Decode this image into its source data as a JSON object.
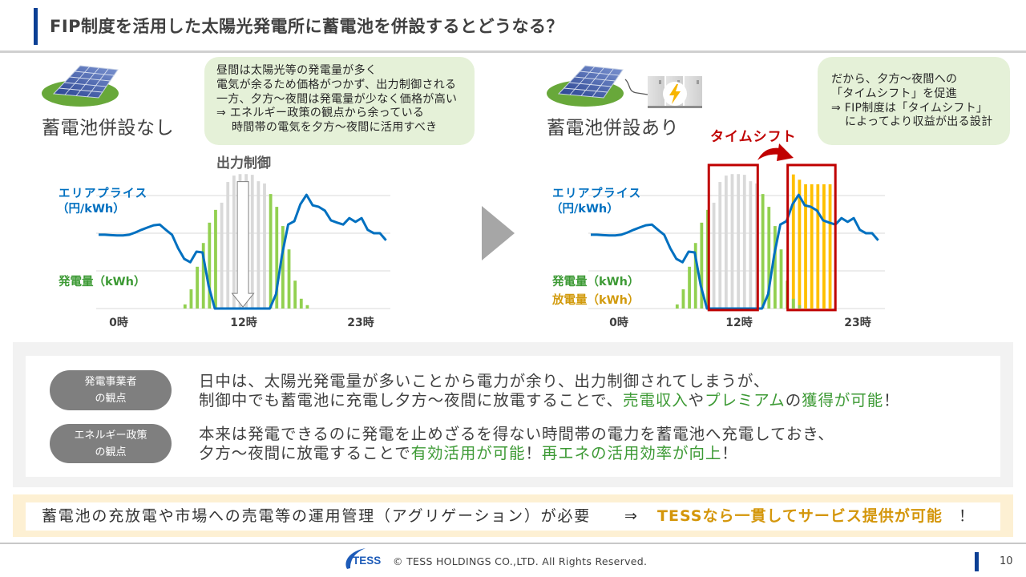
{
  "header": {
    "title": "FIP制度を活用した太陽光発電所に蓄電池を併設するとどうなる？"
  },
  "left_panel": {
    "heading": "蓄電池併設なし",
    "icon": "solar-panel-icon",
    "callout_lines": [
      "昼間は太陽光等の発電量が多く",
      "電気が余るため価格がつかず、出力制御される",
      "一方、夕方～夜間は発電量が少なく価格が高い",
      "⇒ エネルギー政策の観点から余っている",
      "時間帯の電気を夕方～夜間に活用すべき"
    ]
  },
  "right_panel": {
    "heading": "蓄電池併設あり",
    "icons": [
      "solar-panel-icon",
      "battery-storage-icon",
      "lightning-icon"
    ],
    "callout_lines": [
      "だから、夕方～夜間への",
      "「タイムシフト」を促進",
      "⇒ FIP制度は「タイムシフト」",
      "によってより収益が出る設計"
    ]
  },
  "transition_arrow": "arrow-right-icon",
  "perspectives": [
    {
      "badge_lines": [
        "発電事業者",
        "の観点"
      ],
      "line1": [
        "日中は、太陽光発電量が多いことから電力が余り、出力制御されてしまうが、"
      ],
      "line2": [
        "制御中でも蓄電池に充電し夕方～夜間に放電することで、",
        "売電収入",
        "や",
        "プレミアム",
        "の",
        "獲得が可能",
        "！"
      ]
    },
    {
      "badge_lines": [
        "エネルギー政策",
        "の観点"
      ],
      "line1": [
        "本来は発電できるのに発電を止めざるを得ない時間帯の電力を蓄電池へ充電しておき、"
      ],
      "line2": [
        "夕方～夜間に放電することで",
        "有効活用が可能",
        "！",
        "再エネの活用効率が向上",
        "！"
      ]
    }
  ],
  "banner": {
    "text": "蓄電池の充放電や市場への売電等の運用管理（アグリゲーション）が必要",
    "arrow": "⇒",
    "highlight": "TESSなら一貫してサービス提供が可能",
    "exclaim": "！"
  },
  "footer": {
    "logo_text": "TESS",
    "copyright": "© TESS HOLDINGS CO.,LTD. All Rights Reserved.",
    "page_number": "10"
  },
  "colors": {
    "accent_blue": "#0b3f94",
    "price_line": "#0070c0",
    "generation": "#92d050",
    "curtailed": "#d9d9d9",
    "discharge": "#ffc000",
    "highlight_red": "#c00000",
    "text_green": "#3d9a35",
    "text_orange": "#d4960a",
    "callout_bg": "#e5f1d8",
    "badge_gray": "#7f7f7f"
  },
  "chart_data": [
    {
      "title": "蓄電池併設なし",
      "type": "bar+line",
      "n_points": 48,
      "xlabel": "",
      "ylabel": "",
      "ylim": [
        0,
        3.6
      ],
      "grid": true,
      "gridlines": [
        0,
        1,
        2,
        3
      ],
      "x_ticks": [
        {
          "label": "0時",
          "pos": 3.2
        },
        {
          "label": "12時",
          "pos": 23.7
        },
        {
          "label": "23時",
          "pos": 42.9
        }
      ],
      "series": [
        {
          "name": "出力制御",
          "type": "bar",
          "color": "#d9d9d9",
          "start": 20,
          "values": [
            2.81,
            3.36,
            3.53,
            3.57,
            3.57,
            3.55,
            3.38,
            3.32
          ]
        },
        {
          "name": "発電量（kWh）",
          "type": "bar",
          "color": "#92d050",
          "start": 14,
          "values": [
            0.11,
            0.51,
            1.11,
            1.74,
            2.28,
            2.62,
            null,
            null,
            null,
            null,
            null,
            null,
            null,
            null,
            3.04,
            2.7,
            2.19,
            1.57,
            0.74,
            0.26,
            0.09
          ]
        },
        {
          "name": "エリアプライス（円/kWh）",
          "label_lines": [
            "エリアプライス",
            "（円/kWh）"
          ],
          "type": "line",
          "color": "#0070c0",
          "start": 0,
          "values": [
            1.96,
            1.96,
            1.95,
            1.94,
            1.94,
            1.96,
            2.02,
            2.09,
            2.15,
            2.21,
            2.23,
            2.09,
            1.96,
            1.6,
            1.32,
            1.23,
            1.51,
            1.49,
            0.6,
            0,
            0,
            0,
            0,
            0,
            0,
            0,
            0,
            0,
            0,
            0.38,
            1.43,
            2.23,
            2.32,
            2.77,
            3.02,
            2.74,
            2.7,
            2.6,
            2.34,
            2.28,
            2.23,
            2.4,
            2.3,
            2.4,
            2.09,
            2.0,
            2.0,
            1.81
          ]
        }
      ],
      "annotations": [
        {
          "type": "down-arrow",
          "label": "出力制御",
          "x": 23.6,
          "y_from": 3.37,
          "y_to": 0.04
        }
      ]
    },
    {
      "title": "蓄電池併設あり",
      "type": "bar+line",
      "n_points": 48,
      "xlabel": "",
      "ylabel": "",
      "ylim": [
        0,
        3.6
      ],
      "grid": true,
      "gridlines": [
        0,
        1,
        2,
        3
      ],
      "x_ticks": [
        {
          "label": "0時",
          "pos": 4.65
        },
        {
          "label": "12時",
          "pos": 24.2
        },
        {
          "label": "23時",
          "pos": 43.6
        }
      ],
      "series": [
        {
          "name": "出力制御",
          "type": "bar",
          "color": "#d9d9d9",
          "start": 20,
          "values": [
            2.81,
            3.36,
            3.53,
            3.57,
            3.57,
            3.55,
            3.38,
            3.32
          ]
        },
        {
          "name": "放電量（kWh）",
          "type": "bar",
          "color": "#ffc000",
          "start": 33,
          "values": [
            3.56,
            3.42,
            3.3,
            3.3,
            3.3,
            3.3,
            3.3
          ]
        },
        {
          "name": "発電量（kWh）",
          "type": "bar",
          "color": "#92d050",
          "start": 14,
          "values": [
            0.11,
            0.51,
            1.11,
            1.74,
            2.28,
            2.62,
            null,
            null,
            null,
            null,
            null,
            null,
            null,
            null,
            3.04,
            2.7,
            2.19,
            1.57,
            0.74,
            0.26,
            0.09
          ]
        },
        {
          "name": "エリアプライス（円/kWh）",
          "label_lines": [
            "エリアプライス",
            "（円/kWh）"
          ],
          "type": "line",
          "color": "#0070c0",
          "start": 0,
          "values": [
            1.96,
            1.96,
            1.95,
            1.94,
            1.94,
            1.96,
            2.02,
            2.09,
            2.15,
            2.21,
            2.23,
            2.09,
            1.96,
            1.6,
            1.32,
            1.23,
            1.51,
            1.49,
            0.6,
            0,
            0,
            0,
            0,
            0,
            0,
            0,
            0,
            0,
            0,
            0.38,
            1.43,
            2.23,
            2.32,
            2.77,
            3.02,
            2.74,
            2.7,
            2.6,
            2.34,
            2.28,
            2.23,
            2.4,
            2.3,
            2.4,
            2.09,
            2.0,
            2.0,
            1.81
          ]
        }
      ],
      "annotations": [
        {
          "type": "highlight-box",
          "x_from": 19.3,
          "x_to": 27.3,
          "y_from": -0.04,
          "y_to": 3.81,
          "color": "#c00000"
        },
        {
          "type": "highlight-box",
          "x_from": 32.2,
          "x_to": 40.0,
          "y_from": -0.04,
          "y_to": 3.81,
          "color": "#c00000"
        },
        {
          "type": "curved-arrow",
          "label": "タイムシフト"
        }
      ]
    }
  ]
}
